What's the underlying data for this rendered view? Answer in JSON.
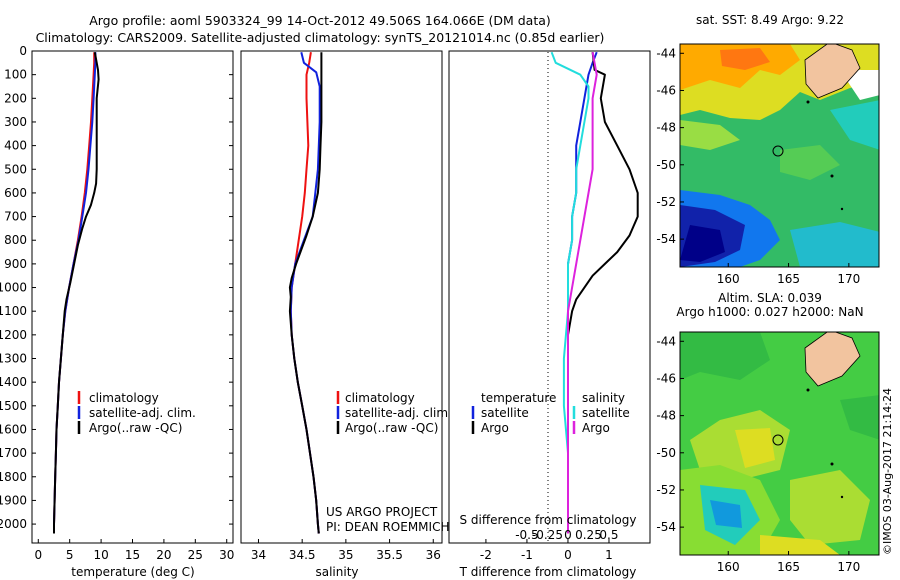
{
  "header": {
    "title_line1": "Argo profile: aoml 5903324_99 14-Oct-2012 49.506S 164.066E (DM data)",
    "title_line2": "Climatology: CARS2009. Satellite-adjusted climatology: synTS_20121014.nc (0.85d earlier)"
  },
  "colors": {
    "climatology": "#ee1111",
    "satellite": "#1122dd",
    "argo": "#000000",
    "argo_sal_diff": "#dd22dd",
    "satellite_sal_diff": "#22dddd"
  },
  "chart_data": [
    {
      "type": "line",
      "panel": "temperature",
      "xlabel": "temperature (deg C)",
      "ylabel": "",
      "xlim": [
        -1,
        31
      ],
      "ylim": [
        2080,
        0
      ],
      "xticks": [
        0,
        5,
        10,
        15,
        20,
        25,
        30
      ],
      "yticks": [
        0,
        100,
        200,
        300,
        400,
        500,
        600,
        700,
        800,
        900,
        1000,
        1100,
        1200,
        1300,
        1400,
        1500,
        1600,
        1700,
        1800,
        1900,
        2000
      ],
      "legend": [
        "climatology",
        "satellite-adj. clim.",
        "Argo(..raw -QC)"
      ],
      "series": [
        {
          "name": "climatology",
          "color": "#ee1111",
          "points": [
            [
              8.9,
              5
            ],
            [
              8.9,
              50
            ],
            [
              8.8,
              100
            ],
            [
              8.6,
              200
            ],
            [
              8.4,
              300
            ],
            [
              8.1,
              400
            ],
            [
              7.8,
              500
            ],
            [
              7.4,
              600
            ],
            [
              6.9,
              700
            ],
            [
              6.3,
              800
            ],
            [
              5.6,
              900
            ],
            [
              4.9,
              1000
            ],
            [
              4.3,
              1100
            ],
            [
              3.9,
              1200
            ],
            [
              3.6,
              1300
            ],
            [
              3.3,
              1400
            ],
            [
              3.1,
              1500
            ],
            [
              2.9,
              1600
            ],
            [
              2.8,
              1700
            ],
            [
              2.7,
              1800
            ],
            [
              2.6,
              1900
            ],
            [
              2.5,
              2000
            ],
            [
              2.5,
              2040
            ]
          ]
        },
        {
          "name": "satellite-adj. clim.",
          "color": "#1122dd",
          "points": [
            [
              9.1,
              5
            ],
            [
              9.1,
              50
            ],
            [
              9.0,
              100
            ],
            [
              8.8,
              200
            ],
            [
              8.6,
              300
            ],
            [
              8.3,
              400
            ],
            [
              8.0,
              500
            ],
            [
              7.6,
              600
            ],
            [
              7.0,
              700
            ],
            [
              6.4,
              800
            ],
            [
              5.6,
              900
            ],
            [
              4.9,
              1000
            ],
            [
              4.3,
              1100
            ],
            [
              3.9,
              1200
            ],
            [
              3.6,
              1300
            ],
            [
              3.3,
              1400
            ],
            [
              3.1,
              1500
            ],
            [
              2.9,
              1600
            ],
            [
              2.8,
              1700
            ],
            [
              2.7,
              1800
            ],
            [
              2.6,
              1900
            ],
            [
              2.5,
              2000
            ],
            [
              2.5,
              2040
            ]
          ]
        },
        {
          "name": "Argo(..raw -QC)",
          "color": "#000000",
          "points": [
            [
              9.0,
              5
            ],
            [
              9.5,
              80
            ],
            [
              9.6,
              120
            ],
            [
              9.3,
              200
            ],
            [
              9.3,
              300
            ],
            [
              9.3,
              400
            ],
            [
              9.3,
              500
            ],
            [
              9.2,
              560
            ],
            [
              8.9,
              600
            ],
            [
              8.4,
              650
            ],
            [
              7.6,
              700
            ],
            [
              7.0,
              750
            ],
            [
              6.3,
              820
            ],
            [
              5.7,
              900
            ],
            [
              5.1,
              980
            ],
            [
              4.5,
              1050
            ],
            [
              4.2,
              1100
            ],
            [
              3.9,
              1200
            ],
            [
              3.6,
              1300
            ],
            [
              3.3,
              1400
            ],
            [
              3.1,
              1500
            ],
            [
              2.9,
              1600
            ],
            [
              2.8,
              1700
            ],
            [
              2.7,
              1800
            ],
            [
              2.6,
              1900
            ],
            [
              2.5,
              2000
            ],
            [
              2.5,
              2040
            ]
          ]
        }
      ]
    },
    {
      "type": "line",
      "panel": "salinity",
      "xlabel": "salinity",
      "ylabel": "",
      "xlim": [
        33.8,
        36.1
      ],
      "ylim": [
        2080,
        0
      ],
      "xticks": [
        34,
        34.5,
        35,
        35.5,
        36
      ],
      "legend": [
        "climatology",
        "satellite-adj. clim.",
        "Argo(..raw -QC)"
      ],
      "annotations": [
        "US ARGO PROJECT",
        "PI: DEAN ROEMMICH"
      ],
      "series": [
        {
          "name": "climatology",
          "color": "#ee1111",
          "points": [
            [
              34.6,
              5
            ],
            [
              34.58,
              50
            ],
            [
              34.55,
              100
            ],
            [
              34.55,
              200
            ],
            [
              34.56,
              300
            ],
            [
              34.57,
              400
            ],
            [
              34.55,
              500
            ],
            [
              34.53,
              600
            ],
            [
              34.5,
              700
            ],
            [
              34.46,
              800
            ],
            [
              34.42,
              900
            ],
            [
              34.38,
              1000
            ],
            [
              34.37,
              1100
            ],
            [
              34.38,
              1200
            ],
            [
              34.41,
              1300
            ],
            [
              34.45,
              1400
            ],
            [
              34.5,
              1500
            ],
            [
              34.55,
              1600
            ],
            [
              34.59,
              1700
            ],
            [
              34.63,
              1800
            ],
            [
              34.66,
              1900
            ],
            [
              34.68,
              2000
            ],
            [
              34.69,
              2040
            ]
          ]
        },
        {
          "name": "satellite-adj. clim.",
          "color": "#1122dd",
          "points": [
            [
              34.49,
              5
            ],
            [
              34.52,
              50
            ],
            [
              34.66,
              90
            ],
            [
              34.7,
              150
            ],
            [
              34.7,
              300
            ],
            [
              34.68,
              500
            ],
            [
              34.62,
              700
            ],
            [
              34.52,
              800
            ],
            [
              34.42,
              900
            ],
            [
              34.38,
              1000
            ],
            [
              34.37,
              1100
            ],
            [
              34.38,
              1200
            ],
            [
              34.41,
              1300
            ],
            [
              34.45,
              1400
            ],
            [
              34.5,
              1500
            ],
            [
              34.55,
              1600
            ],
            [
              34.59,
              1700
            ],
            [
              34.63,
              1800
            ],
            [
              34.66,
              1900
            ],
            [
              34.68,
              2000
            ],
            [
              34.69,
              2040
            ]
          ]
        },
        {
          "name": "Argo(..raw -QC)",
          "color": "#000000",
          "points": [
            [
              34.72,
              5
            ],
            [
              34.72,
              100
            ],
            [
              34.72,
              200
            ],
            [
              34.72,
              300
            ],
            [
              34.71,
              400
            ],
            [
              34.7,
              500
            ],
            [
              34.68,
              600
            ],
            [
              34.62,
              700
            ],
            [
              34.55,
              780
            ],
            [
              34.48,
              850
            ],
            [
              34.43,
              900
            ],
            [
              34.38,
              960
            ],
            [
              34.36,
              1000
            ],
            [
              34.37,
              1040
            ],
            [
              34.36,
              1100
            ],
            [
              34.38,
              1200
            ],
            [
              34.41,
              1300
            ],
            [
              34.45,
              1400
            ],
            [
              34.5,
              1500
            ],
            [
              34.55,
              1600
            ],
            [
              34.59,
              1700
            ],
            [
              34.63,
              1800
            ],
            [
              34.66,
              1900
            ],
            [
              34.68,
              2000
            ],
            [
              34.69,
              2040
            ]
          ]
        }
      ]
    },
    {
      "type": "line",
      "panel": "differences",
      "xlabel": "T difference from climatology",
      "xlabel_top": "S difference from climatology",
      "xlim": [
        -2.9,
        2.0
      ],
      "ylim": [
        2080,
        0
      ],
      "xticks": [
        -2,
        -1,
        0,
        1
      ],
      "xticklabels": [
        "-2",
        "-1",
        "0",
        "1"
      ],
      "s_ticklabels": [
        "-0.5",
        "-0.25",
        "0",
        "0.25",
        "0.5"
      ],
      "legend": {
        "temperature_header": "temperature",
        "salinity_header": "salinity",
        "t_satellite": "satellite",
        "t_argo": "Argo",
        "s_satellite": "satellite",
        "s_argo": "Argo"
      },
      "series": [
        {
          "name": "satellite",
          "color": "#1122dd",
          "points": [
            [
              0.7,
              5
            ],
            [
              0.6,
              50
            ],
            [
              0.5,
              100
            ],
            [
              0.4,
              200
            ],
            [
              0.3,
              300
            ],
            [
              0.2,
              400
            ],
            [
              0.2,
              500
            ],
            [
              0.2,
              600
            ],
            [
              0.1,
              700
            ],
            [
              0.1,
              800
            ],
            [
              0.0,
              900
            ],
            [
              0.0,
              1000
            ],
            [
              0.0,
              1100
            ],
            [
              0.0,
              1300
            ],
            [
              0.0,
              1600
            ],
            [
              0.0,
              2040
            ]
          ]
        },
        {
          "name": "Argo",
          "color": "#000000",
          "points": [
            [
              0.6,
              5
            ],
            [
              0.65,
              80
            ],
            [
              0.9,
              100
            ],
            [
              0.8,
              200
            ],
            [
              0.9,
              300
            ],
            [
              1.2,
              400
            ],
            [
              1.5,
              500
            ],
            [
              1.7,
              600
            ],
            [
              1.7,
              700
            ],
            [
              1.5,
              780
            ],
            [
              1.2,
              850
            ],
            [
              0.9,
              900
            ],
            [
              0.6,
              950
            ],
            [
              0.2,
              1050
            ],
            [
              0.1,
              1100
            ],
            [
              0.0,
              1200
            ],
            [
              0.0,
              1400
            ],
            [
              0.0,
              2040
            ]
          ]
        },
        {
          "name": "satellite",
          "color": "#22dddd",
          "points": [
            [
              -0.4,
              5
            ],
            [
              -0.3,
              50
            ],
            [
              0.3,
              100
            ],
            [
              0.5,
              150
            ],
            [
              0.5,
              200
            ],
            [
              0.4,
              300
            ],
            [
              0.3,
              400
            ],
            [
              0.2,
              500
            ],
            [
              0.2,
              600
            ],
            [
              0.1,
              700
            ],
            [
              0.1,
              800
            ],
            [
              0.0,
              900
            ],
            [
              0.0,
              1000
            ],
            [
              0.0,
              1100
            ],
            [
              -0.1,
              1300
            ],
            [
              -0.1,
              1500
            ],
            [
              0.0,
              1700
            ],
            [
              0.0,
              2040
            ]
          ]
        },
        {
          "name": "Argo",
          "color": "#dd22dd",
          "points": [
            [
              0.6,
              5
            ],
            [
              0.7,
              100
            ],
            [
              0.6,
              200
            ],
            [
              0.6,
              300
            ],
            [
              0.6,
              400
            ],
            [
              0.6,
              500
            ],
            [
              0.5,
              600
            ],
            [
              0.4,
              700
            ],
            [
              0.3,
              800
            ],
            [
              0.2,
              900
            ],
            [
              0.1,
              1000
            ],
            [
              0.0,
              1100
            ],
            [
              0.0,
              1300
            ],
            [
              0.0,
              2040
            ]
          ]
        }
      ]
    },
    {
      "type": "heatmap",
      "panel": "sst_map",
      "title": "sat. SST: 8.49 Argo: 9.22",
      "xlim": [
        156,
        172.5
      ],
      "ylim": [
        -55.5,
        -43.5
      ],
      "xticks": [
        160,
        165,
        170
      ],
      "yticks": [
        -44,
        -46,
        -48,
        -50,
        -52,
        -54
      ],
      "argo_position": [
        164.066,
        -49.506
      ]
    },
    {
      "type": "heatmap",
      "panel": "sla_map",
      "title": "Altim. SLA: 0.039",
      "subtitle": "Argo h1000: 0.027 h2000: NaN",
      "xlim": [
        156,
        172.5
      ],
      "ylim": [
        -55.5,
        -43.5
      ],
      "xticks": [
        160,
        165,
        170
      ],
      "yticks": [
        -44,
        -46,
        -48,
        -50,
        -52,
        -54
      ],
      "argo_position": [
        164.066,
        -49.506
      ]
    }
  ],
  "footer": {
    "stamp": "©IMOS 03-Aug-2017 21:14:24"
  }
}
